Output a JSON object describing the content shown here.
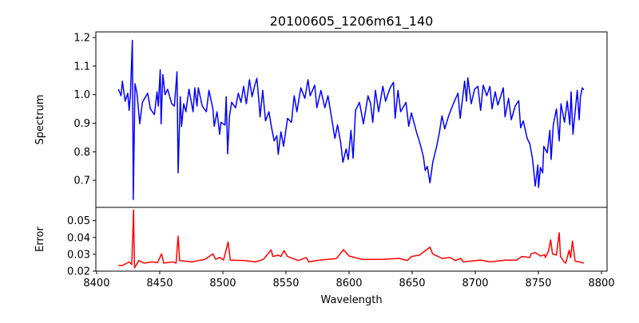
{
  "chart_data": [
    {
      "type": "line",
      "title": "20100605_1206m61_140",
      "xlabel": "",
      "ylabel": "Spectrum",
      "xlim": [
        8399.4,
        8804.4
      ],
      "ylim": [
        0.6054,
        1.2196
      ],
      "yticks": [
        0.7,
        0.8,
        0.9,
        1.0,
        1.1,
        1.2
      ],
      "ytick_labels": [
        "0.7",
        "0.8",
        "0.9",
        "1.0",
        "1.1",
        "1.2"
      ],
      "grid": false,
      "series": [
        {
          "name": "Spectrum",
          "color": "#0000ff",
          "points": [
            [
              8417.3,
              1.019
            ],
            [
              8419.4,
              0.996
            ],
            [
              8420.4,
              1.047
            ],
            [
              8422.6,
              0.977
            ],
            [
              8424.7,
              1.005
            ],
            [
              8425.8,
              0.945
            ],
            [
              8426.8,
              1.0
            ],
            [
              8428.3,
              1.19
            ],
            [
              8429.1,
              0.633
            ],
            [
              8430.4,
              1.038
            ],
            [
              8432,
              1.005
            ],
            [
              8434.2,
              0.898
            ],
            [
              8436.3,
              0.973
            ],
            [
              8440.5,
              1.005
            ],
            [
              8442.6,
              0.95
            ],
            [
              8445.8,
              0.93
            ],
            [
              8447.9,
              1.01
            ],
            [
              8448.9,
              0.96
            ],
            [
              8450.4,
              1.087
            ],
            [
              8451.1,
              0.898
            ],
            [
              8452.5,
              1.07
            ],
            [
              8454.2,
              1.0
            ],
            [
              8456.3,
              1.019
            ],
            [
              8459.5,
              0.968
            ],
            [
              8461.6,
              0.96
            ],
            [
              8463.7,
              1.08
            ],
            [
              8464.6,
              0.726
            ],
            [
              8466.3,
              0.993
            ],
            [
              8467.3,
              0.889
            ],
            [
              8469,
              0.968
            ],
            [
              8470.7,
              0.94
            ],
            [
              8473.2,
              1.019
            ],
            [
              8476.4,
              0.94
            ],
            [
              8477.8,
              1.024
            ],
            [
              8479.5,
              0.96
            ],
            [
              8480.6,
              1.024
            ],
            [
              8483.7,
              0.96
            ],
            [
              8486.9,
              0.94
            ],
            [
              8489,
              1.015
            ],
            [
              8492.2,
              0.95
            ],
            [
              8493.2,
              0.889
            ],
            [
              8495.4,
              0.94
            ],
            [
              8497.5,
              0.861
            ],
            [
              8498.5,
              0.903
            ],
            [
              8501.7,
              0.894
            ],
            [
              8502.7,
              0.993
            ],
            [
              8503.8,
              0.793
            ],
            [
              8505.3,
              0.925
            ],
            [
              8507,
              0.973
            ],
            [
              8510.1,
              0.954
            ],
            [
              8512.2,
              1.005
            ],
            [
              8514.4,
              0.973
            ],
            [
              8516.5,
              1.029
            ],
            [
              8518.6,
              0.968
            ],
            [
              8521.1,
              1.052
            ],
            [
              8523.2,
              0.993
            ],
            [
              8525.3,
              1.033
            ],
            [
              8527,
              1.057
            ],
            [
              8528.5,
              0.982
            ],
            [
              8529.5,
              0.922
            ],
            [
              8531.6,
              1.015
            ],
            [
              8533.8,
              0.908
            ],
            [
              8536.5,
              0.94
            ],
            [
              8538.6,
              0.884
            ],
            [
              8540.7,
              0.838
            ],
            [
              8542.8,
              0.856
            ],
            [
              8543.9,
              0.791
            ],
            [
              8546,
              0.87
            ],
            [
              8548.1,
              0.819
            ],
            [
              8551.3,
              0.917
            ],
            [
              8554.4,
              0.903
            ],
            [
              8556.5,
              0.996
            ],
            [
              8558.7,
              0.94
            ],
            [
              8561.8,
              1.024
            ],
            [
              8565,
              0.987
            ],
            [
              8567.5,
              1.052
            ],
            [
              8569.2,
              0.996
            ],
            [
              8572.8,
              1.033
            ],
            [
              8574.5,
              0.954
            ],
            [
              8577.7,
              1.015
            ],
            [
              8580.8,
              0.954
            ],
            [
              8583.3,
              0.996
            ],
            [
              8587.1,
              0.894
            ],
            [
              8588.8,
              0.847
            ],
            [
              8590.9,
              0.894
            ],
            [
              8593.5,
              0.828
            ],
            [
              8595.1,
              0.763
            ],
            [
              8597.7,
              0.81
            ],
            [
              8599.4,
              0.773
            ],
            [
              8601.5,
              0.875
            ],
            [
              8603.2,
              0.777
            ],
            [
              8605.1,
              0.945
            ],
            [
              8608.2,
              0.973
            ],
            [
              8611.4,
              0.898
            ],
            [
              8615,
              0.996
            ],
            [
              8617.1,
              0.968
            ],
            [
              8618.8,
              0.903
            ],
            [
              8620.9,
              1.015
            ],
            [
              8623.4,
              0.94
            ],
            [
              8626.8,
              1.029
            ],
            [
              8628.9,
              0.977
            ],
            [
              8632.5,
              1.024
            ],
            [
              8635.2,
              1.043
            ],
            [
              8636.5,
              0.917
            ],
            [
              8638.8,
              1.015
            ],
            [
              8640.9,
              0.94
            ],
            [
              8645.1,
              0.973
            ],
            [
              8647.3,
              0.889
            ],
            [
              8649.4,
              0.936
            ],
            [
              8653.6,
              0.866
            ],
            [
              8656.3,
              0.828
            ],
            [
              8658.9,
              0.782
            ],
            [
              8660.3,
              0.735
            ],
            [
              8662,
              0.749
            ],
            [
              8664.1,
              0.691
            ],
            [
              8666.3,
              0.763
            ],
            [
              8669.4,
              0.819
            ],
            [
              8671.5,
              0.866
            ],
            [
              8673.6,
              0.926
            ],
            [
              8675.8,
              0.88
            ],
            [
              8678.9,
              0.926
            ],
            [
              8681,
              0.95
            ],
            [
              8683.1,
              0.973
            ],
            [
              8686.3,
              1.005
            ],
            [
              8688,
              0.917
            ],
            [
              8691.6,
              1.047
            ],
            [
              8693,
              0.977
            ],
            [
              8694.1,
              1.059
            ],
            [
              8696.8,
              0.968
            ],
            [
              8699.4,
              1.019
            ],
            [
              8702.1,
              1.029
            ],
            [
              8704.2,
              0.945
            ],
            [
              8706.3,
              1.033
            ],
            [
              8709.1,
              0.996
            ],
            [
              8711.6,
              1.029
            ],
            [
              8713.3,
              0.95
            ],
            [
              8715.8,
              1.01
            ],
            [
              8717.9,
              0.963
            ],
            [
              8722.2,
              1.024
            ],
            [
              8723.6,
              0.922
            ],
            [
              8726.4,
              0.987
            ],
            [
              8728.5,
              0.912
            ],
            [
              8731.6,
              0.96
            ],
            [
              8734.4,
              0.979
            ],
            [
              8735.9,
              0.884
            ],
            [
              8738,
              0.908
            ],
            [
              8741.1,
              0.847
            ],
            [
              8743.2,
              0.828
            ],
            [
              8745.4,
              0.773
            ],
            [
              8747.5,
              0.68
            ],
            [
              8749.6,
              0.754
            ],
            [
              8750.1,
              0.675
            ],
            [
              8751.7,
              0.745
            ],
            [
              8753.4,
              0.726
            ],
            [
              8754.3,
              0.819
            ],
            [
              8757,
              0.796
            ],
            [
              8759.1,
              0.875
            ],
            [
              8760.1,
              0.773
            ],
            [
              8761.8,
              0.894
            ],
            [
              8764.3,
              0.95
            ],
            [
              8766.5,
              0.838
            ],
            [
              8767.9,
              0.968
            ],
            [
              8770.7,
              0.903
            ],
            [
              8772.8,
              0.977
            ],
            [
              8774.9,
              0.894
            ],
            [
              8775.9,
              1.01
            ],
            [
              8777.4,
              0.861
            ],
            [
              8780.8,
              1.015
            ],
            [
              8782.3,
              0.912
            ],
            [
              8783.3,
              0.993
            ],
            [
              8784.8,
              1.024
            ],
            [
              8786,
              1.017
            ]
          ]
        }
      ]
    },
    {
      "type": "line",
      "title": "",
      "xlabel": "Wavelength",
      "ylabel": "Error",
      "xlim": [
        8399.4,
        8804.4
      ],
      "ylim": [
        0.02,
        0.0579
      ],
      "xticks": [
        8400,
        8450,
        8500,
        8550,
        8600,
        8650,
        8700,
        8750,
        8800
      ],
      "xtick_labels": [
        "8400",
        "8450",
        "8500",
        "8550",
        "8600",
        "8650",
        "8700",
        "8750",
        "8800"
      ],
      "yticks": [
        0.02,
        0.03,
        0.04,
        0.05
      ],
      "ytick_labels": [
        "0.02",
        "0.03",
        "0.04",
        "0.05"
      ],
      "grid": false,
      "series": [
        {
          "name": "Error",
          "color": "#ff0000",
          "points": [
            [
              8417.3,
              0.0235
            ],
            [
              8420.5,
              0.0233
            ],
            [
              8425.8,
              0.0255
            ],
            [
              8427.9,
              0.024
            ],
            [
              8429.3,
              0.0563
            ],
            [
              8430,
              0.022
            ],
            [
              8433.5,
              0.0263
            ],
            [
              8437.7,
              0.0248
            ],
            [
              8444,
              0.0255
            ],
            [
              8448.2,
              0.025
            ],
            [
              8451.5,
              0.0303
            ],
            [
              8453.2,
              0.0248
            ],
            [
              8460.5,
              0.0255
            ],
            [
              8463,
              0.0248
            ],
            [
              8464.6,
              0.0408
            ],
            [
              8465.8,
              0.0263
            ],
            [
              8475.3,
              0.0255
            ],
            [
              8485.8,
              0.027
            ],
            [
              8492.2,
              0.0303
            ],
            [
              8494.3,
              0.027
            ],
            [
              8497.5,
              0.0281
            ],
            [
              8500.6,
              0.0266
            ],
            [
              8504.2,
              0.0374
            ],
            [
              8505.9,
              0.0266
            ],
            [
              8517.5,
              0.0263
            ],
            [
              8525.9,
              0.0255
            ],
            [
              8532.2,
              0.027
            ],
            [
              8534.4,
              0.029
            ],
            [
              8538.2,
              0.0327
            ],
            [
              8539.7,
              0.0287
            ],
            [
              8543.9,
              0.0295
            ],
            [
              8546,
              0.0287
            ],
            [
              8548.5,
              0.0322
            ],
            [
              8551.3,
              0.0287
            ],
            [
              8559.7,
              0.0263
            ],
            [
              8566,
              0.0281
            ],
            [
              8568.1,
              0.0255
            ],
            [
              8576.6,
              0.0266
            ],
            [
              8583,
              0.027
            ],
            [
              8590,
              0.0275
            ],
            [
              8595.6,
              0.0328
            ],
            [
              8600,
              0.029
            ],
            [
              8610,
              0.027
            ],
            [
              8625,
              0.027
            ],
            [
              8639.9,
              0.0276
            ],
            [
              8646.2,
              0.0263
            ],
            [
              8649.4,
              0.0287
            ],
            [
              8655.7,
              0.0295
            ],
            [
              8660,
              0.0319
            ],
            [
              8664.1,
              0.0343
            ],
            [
              8666.2,
              0.0303
            ],
            [
              8670.5,
              0.0287
            ],
            [
              8673.6,
              0.0276
            ],
            [
              8680,
              0.0281
            ],
            [
              8684.2,
              0.0263
            ],
            [
              8688.4,
              0.0276
            ],
            [
              8690.5,
              0.0255
            ],
            [
              8704.2,
              0.0266
            ],
            [
              8711.6,
              0.0255
            ],
            [
              8724.3,
              0.0266
            ],
            [
              8732.7,
              0.0266
            ],
            [
              8736.9,
              0.0287
            ],
            [
              8743.2,
              0.0281
            ],
            [
              8744.3,
              0.0303
            ],
            [
              8747.5,
              0.0311
            ],
            [
              8751.7,
              0.029
            ],
            [
              8754.9,
              0.0298
            ],
            [
              8755.5,
              0.0281
            ],
            [
              8758,
              0.0319
            ],
            [
              8759.7,
              0.0386
            ],
            [
              8761.2,
              0.0303
            ],
            [
              8764.3,
              0.0295
            ],
            [
              8766.5,
              0.0429
            ],
            [
              8767.5,
              0.0287
            ],
            [
              8770.3,
              0.0255
            ],
            [
              8771.7,
              0.0248
            ],
            [
              8774.4,
              0.0325
            ],
            [
              8775.5,
              0.0279
            ],
            [
              8777,
              0.0379
            ],
            [
              8779.1,
              0.026
            ],
            [
              8782.3,
              0.0255
            ],
            [
              8786,
              0.0248
            ]
          ]
        }
      ]
    }
  ]
}
